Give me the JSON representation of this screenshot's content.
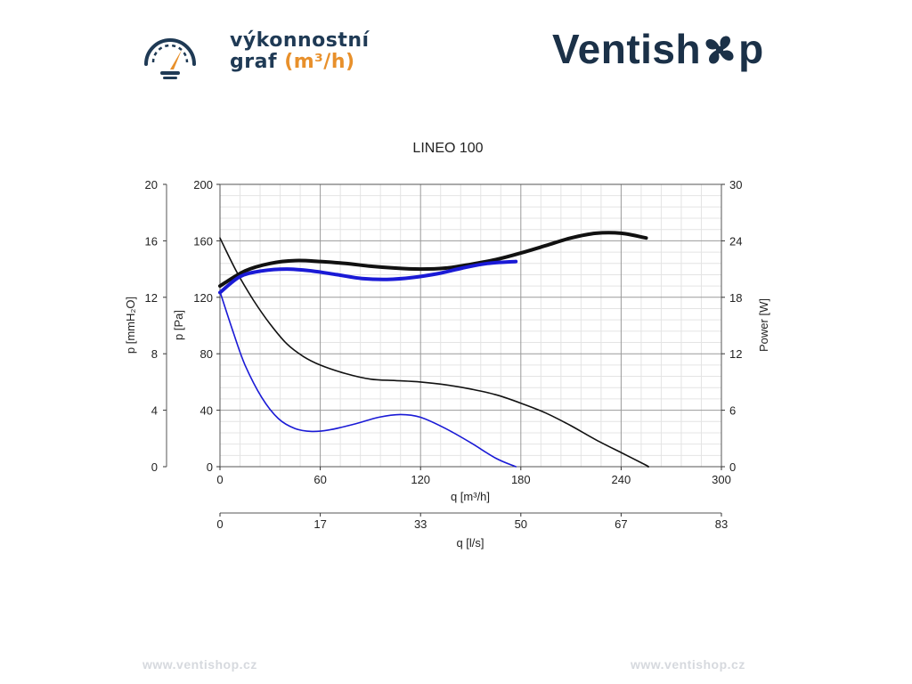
{
  "header": {
    "title_line1": "výkonnostní",
    "title_line2": "graf",
    "title_unit": "(m³/h)",
    "brand_left": "Ventish",
    "brand_right": "p"
  },
  "footer": {
    "left": "www.ventishop.cz",
    "right": "www.ventishop.cz"
  },
  "colors": {
    "navy": "#1f3a55",
    "accent": "#e8902b",
    "series_black": "#111111",
    "series_blue": "#1a1ad6",
    "grid": "#cfcfcf"
  },
  "icons": [
    "gauge-icon",
    "fan-icon"
  ],
  "chart_data": {
    "type": "line",
    "title": "LINEO 100",
    "xlabel": "q [m³/h]",
    "x2label": "q [l/s]",
    "ylabel_left_outer": "p [mmH₂O]",
    "ylabel_left_inner": "p [Pa]",
    "ylabel_right": "Power [W]",
    "xlim": [
      0,
      300
    ],
    "ylim": [
      0,
      200
    ],
    "y2lim": [
      0,
      30
    ],
    "x_ticks": [
      "0",
      "60",
      "120",
      "180",
      "240",
      "300"
    ],
    "x2_ticks": [
      "0",
      "17",
      "33",
      "50",
      "67",
      "83"
    ],
    "y_ticks_pa": [
      "0",
      "40",
      "80",
      "120",
      "160",
      "200"
    ],
    "y_ticks_mmh2o": [
      "0",
      "4",
      "8",
      "12",
      "16",
      "20"
    ],
    "y_ticks_power": [
      "0",
      "6",
      "12",
      "18",
      "24",
      "30"
    ],
    "grid": true,
    "series": [
      {
        "axis": "pressure",
        "color": "black",
        "width": 1.6,
        "points": [
          [
            0,
            162
          ],
          [
            10,
            138
          ],
          [
            20,
            118
          ],
          [
            30,
            101
          ],
          [
            40,
            87
          ],
          [
            50,
            78
          ],
          [
            60,
            72
          ],
          [
            75,
            66
          ],
          [
            90,
            62
          ],
          [
            105,
            61
          ],
          [
            120,
            60
          ],
          [
            135,
            58
          ],
          [
            150,
            55
          ],
          [
            165,
            51
          ],
          [
            180,
            45
          ],
          [
            195,
            38
          ],
          [
            210,
            29
          ],
          [
            225,
            19
          ],
          [
            240,
            10
          ],
          [
            255,
            1
          ],
          [
            256,
            0
          ]
        ]
      },
      {
        "axis": "pressure",
        "color": "blue",
        "width": 1.6,
        "points": [
          [
            0,
            124
          ],
          [
            8,
            95
          ],
          [
            15,
            72
          ],
          [
            25,
            49
          ],
          [
            35,
            34
          ],
          [
            45,
            27
          ],
          [
            55,
            25
          ],
          [
            65,
            26
          ],
          [
            80,
            30
          ],
          [
            95,
            35
          ],
          [
            108,
            37
          ],
          [
            120,
            35
          ],
          [
            135,
            27
          ],
          [
            150,
            17
          ],
          [
            165,
            6
          ],
          [
            177,
            0
          ]
        ]
      },
      {
        "axis": "power",
        "color": "black",
        "width": 4,
        "points": [
          [
            0,
            19.2
          ],
          [
            15,
            20.8
          ],
          [
            30,
            21.6
          ],
          [
            45,
            21.9
          ],
          [
            60,
            21.8
          ],
          [
            75,
            21.6
          ],
          [
            90,
            21.3
          ],
          [
            105,
            21.1
          ],
          [
            120,
            21.0
          ],
          [
            135,
            21.1
          ],
          [
            150,
            21.5
          ],
          [
            165,
            22.0
          ],
          [
            180,
            22.7
          ],
          [
            195,
            23.5
          ],
          [
            210,
            24.3
          ],
          [
            225,
            24.8
          ],
          [
            240,
            24.8
          ],
          [
            255,
            24.3
          ]
        ]
      },
      {
        "axis": "power",
        "color": "blue",
        "width": 4,
        "points": [
          [
            0,
            18.5
          ],
          [
            12,
            20.2
          ],
          [
            25,
            20.8
          ],
          [
            40,
            21.0
          ],
          [
            55,
            20.8
          ],
          [
            70,
            20.4
          ],
          [
            85,
            20.0
          ],
          [
            100,
            19.9
          ],
          [
            115,
            20.1
          ],
          [
            130,
            20.5
          ],
          [
            145,
            21.1
          ],
          [
            160,
            21.6
          ],
          [
            177,
            21.8
          ]
        ]
      }
    ]
  }
}
